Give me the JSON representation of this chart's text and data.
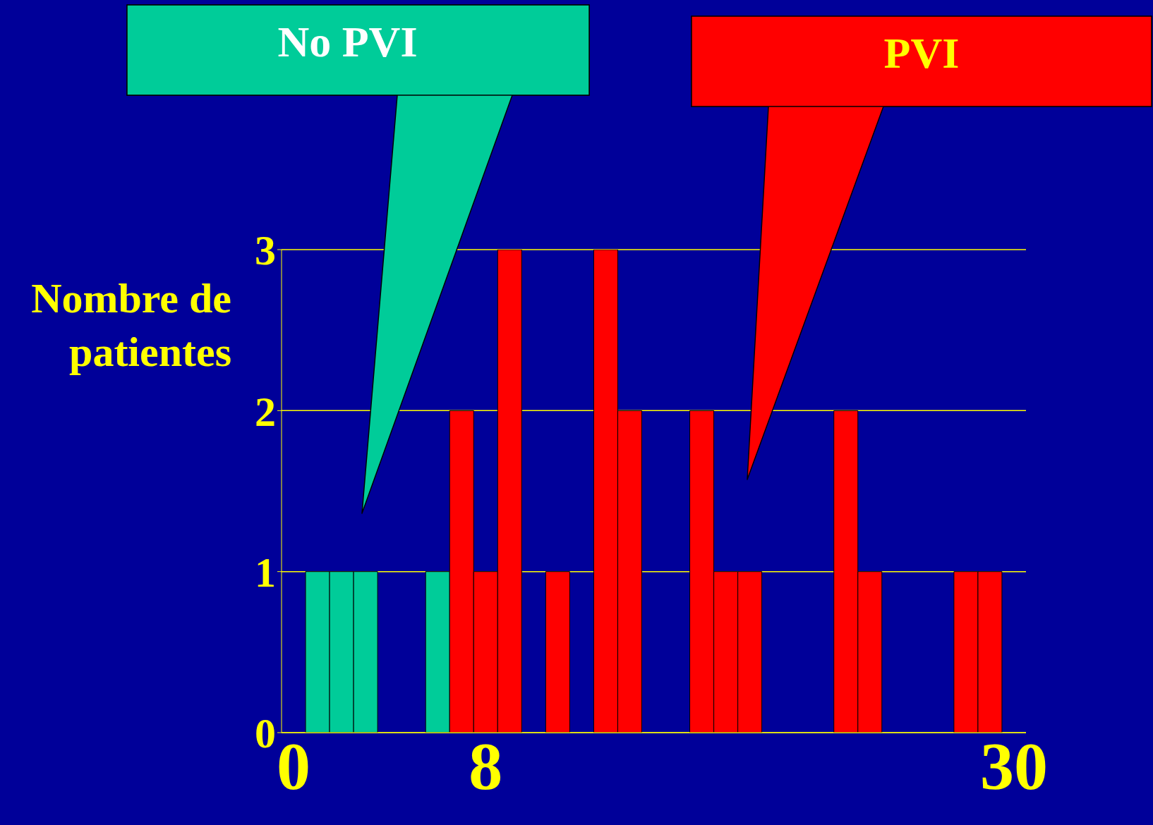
{
  "chart_data": {
    "type": "bar",
    "ylabel": "Nombre de patientes",
    "categories": [
      "0",
      null,
      null,
      null,
      null,
      null,
      null,
      null,
      "8",
      null,
      null,
      null,
      null,
      null,
      null,
      null,
      null,
      null,
      null,
      null,
      null,
      null,
      null,
      null,
      null,
      null,
      null,
      null,
      null,
      null,
      "30"
    ],
    "series": [
      {
        "name": "No PVI",
        "color": "#00cc99",
        "values": [
          null,
          1,
          1,
          1,
          null,
          null,
          1,
          null,
          null,
          null,
          null,
          null,
          null,
          null,
          null,
          null,
          null,
          null,
          null,
          null,
          null,
          null,
          null,
          null,
          null,
          null,
          null,
          null,
          null,
          null,
          null
        ]
      },
      {
        "name": "PVI",
        "color": "#ff0000",
        "values": [
          null,
          null,
          null,
          null,
          null,
          null,
          null,
          2,
          1,
          3,
          null,
          1,
          null,
          3,
          2,
          null,
          null,
          2,
          1,
          1,
          null,
          null,
          null,
          2,
          1,
          null,
          null,
          null,
          1,
          1,
          null
        ]
      }
    ],
    "stacked": true,
    "ylim": [
      0,
      3
    ],
    "yticks": [
      0,
      1,
      2,
      3
    ],
    "grid": "y",
    "legend": "top"
  }
}
